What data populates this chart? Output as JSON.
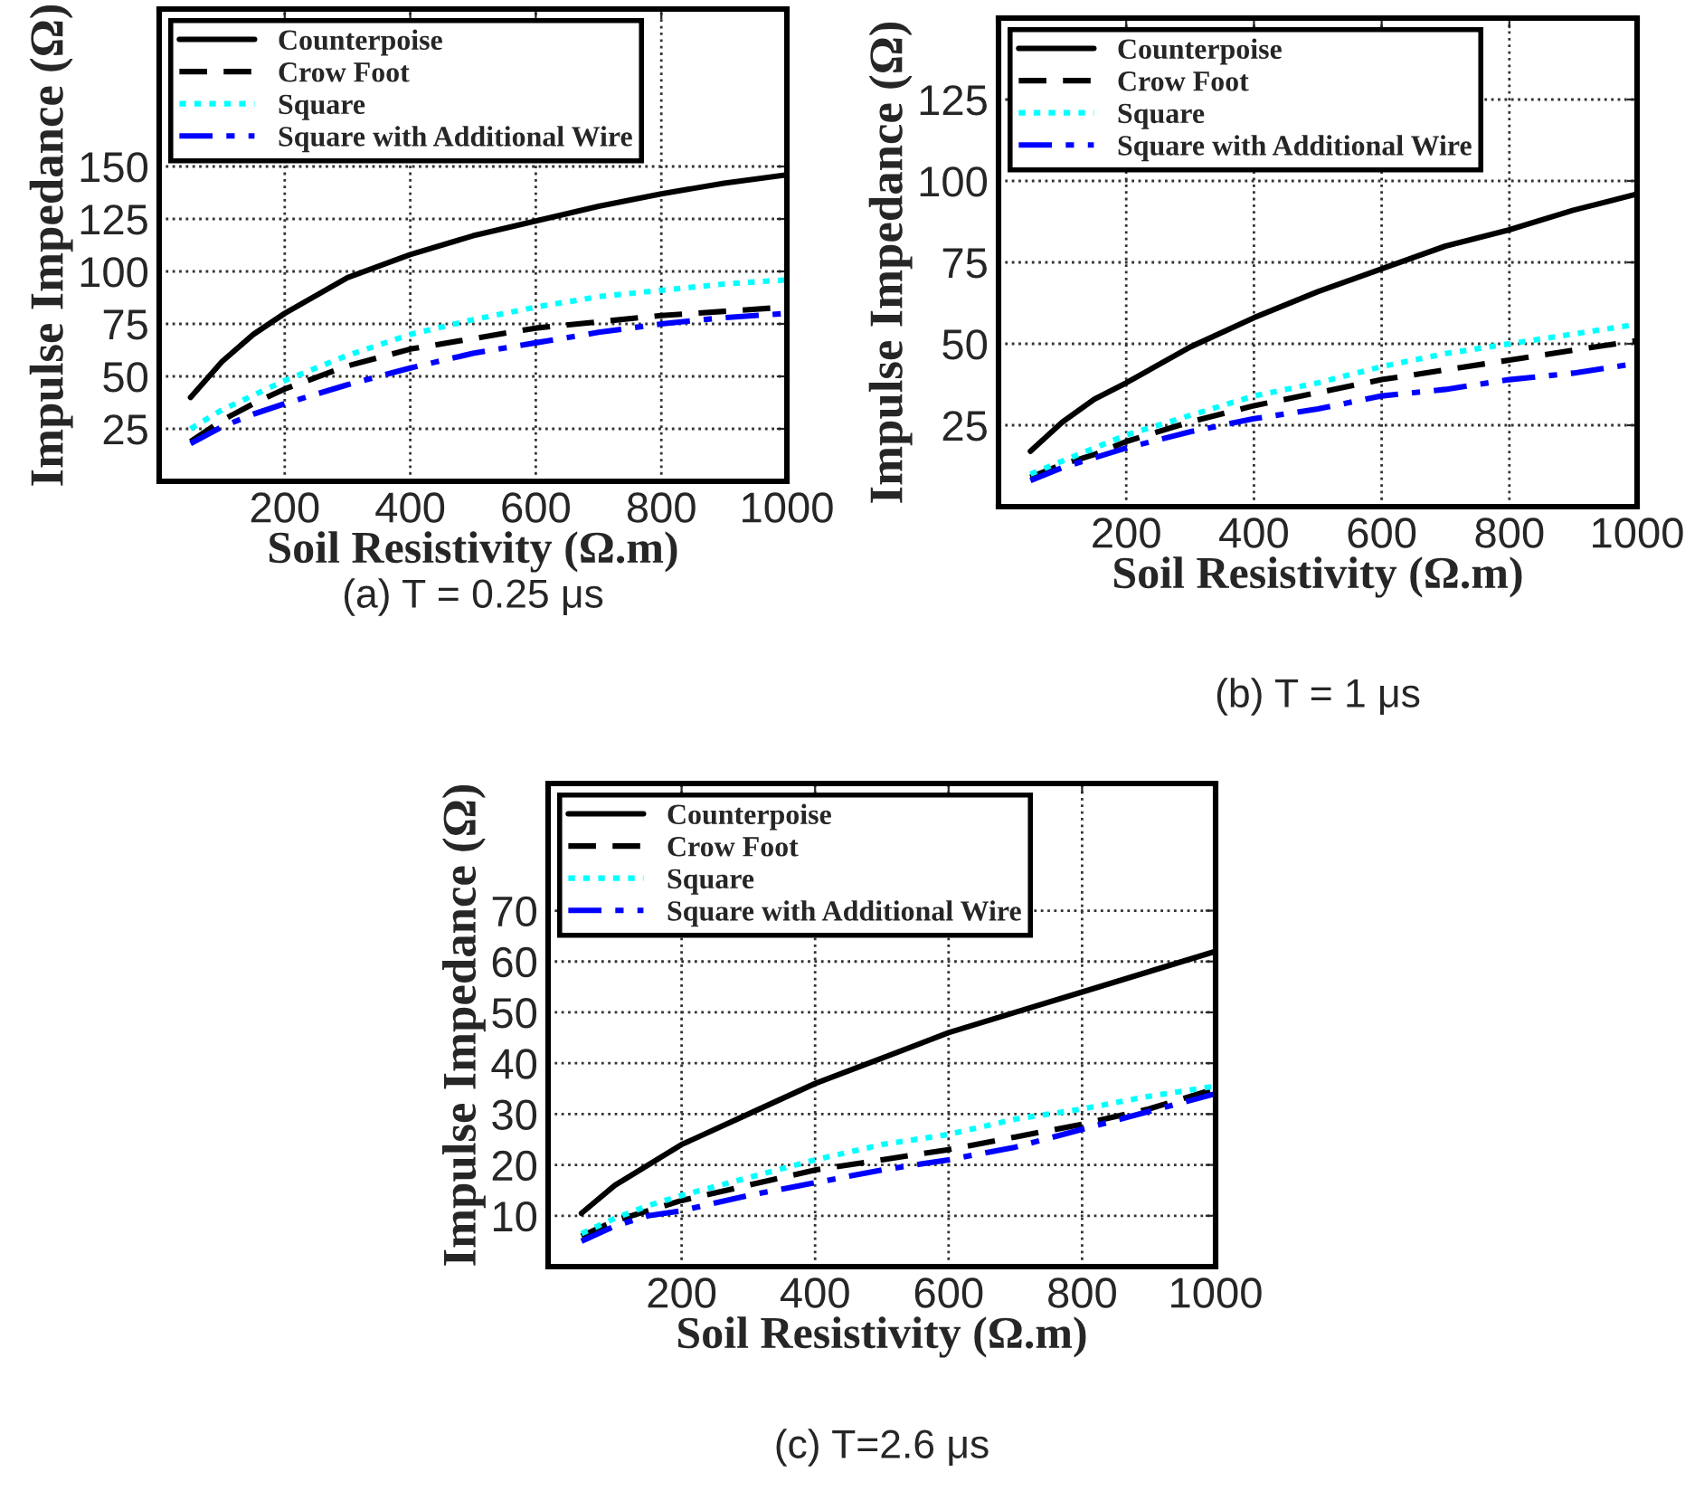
{
  "chart_data": [
    {
      "type": "line",
      "title": "(a) T = 0.25 μs",
      "xlabel": "Soil Resistivity (Ω.m)",
      "ylabel": "Impulse Impedance (Ω)",
      "x": [
        50,
        100,
        150,
        200,
        300,
        400,
        500,
        600,
        700,
        800,
        900,
        1000
      ],
      "xlim": [
        0,
        1000
      ],
      "ylim": [
        0,
        225
      ],
      "xticks": [
        200,
        400,
        600,
        800,
        1000
      ],
      "yticks": [
        25,
        50,
        75,
        100,
        125,
        150
      ],
      "grid": true,
      "legend": "top left",
      "series": [
        {
          "name": "Counterpoise",
          "color": "#000000",
          "line_style": "solid",
          "values": [
            40,
            57,
            70,
            80,
            97,
            108,
            117,
            124,
            131,
            137,
            142,
            146
          ]
        },
        {
          "name": "Crow Foot",
          "color": "#000000",
          "line_style": "dashed",
          "values": [
            19,
            29,
            37,
            44,
            55,
            63,
            68,
            73,
            76,
            79,
            81,
            83
          ]
        },
        {
          "name": "Square",
          "color": "#00ffff",
          "line_style": "dotted",
          "values": [
            25,
            34,
            41,
            48,
            60,
            70,
            77,
            83,
            88,
            91,
            94,
            96
          ]
        },
        {
          "name": "Square with Additional Wire",
          "color": "#0000ff",
          "line_style": "dashdot",
          "values": [
            18,
            26,
            32,
            37,
            46,
            54,
            61,
            66,
            71,
            75,
            78,
            80
          ]
        }
      ]
    },
    {
      "type": "line",
      "title": "(b) T = 1 μs",
      "xlabel": "Soil Resistivity (Ω.m)",
      "ylabel": "Impulse Impedance (Ω)",
      "x": [
        50,
        100,
        150,
        200,
        300,
        400,
        500,
        600,
        700,
        800,
        900,
        1000
      ],
      "xlim": [
        0,
        1000
      ],
      "ylim": [
        0,
        150
      ],
      "xticks": [
        200,
        400,
        600,
        800,
        1000
      ],
      "yticks": [
        25,
        50,
        75,
        100,
        125
      ],
      "grid": true,
      "legend": "top left",
      "series": [
        {
          "name": "Counterpoise",
          "color": "#000000",
          "line_style": "solid",
          "values": [
            17,
            26,
            33,
            38,
            49,
            58,
            66,
            73,
            80,
            85,
            91,
            96
          ]
        },
        {
          "name": "Crow Foot",
          "color": "#000000",
          "line_style": "dashed",
          "values": [
            9,
            13,
            16,
            20,
            26,
            31,
            35,
            39,
            42,
            45,
            48,
            51
          ]
        },
        {
          "name": "Square",
          "color": "#00ffff",
          "line_style": "dotted",
          "values": [
            10,
            14,
            18,
            22,
            28,
            34,
            38,
            43,
            47,
            50,
            53,
            56
          ]
        },
        {
          "name": "Square with Additional Wire",
          "color": "#0000ff",
          "line_style": "dashdot",
          "values": [
            8,
            12,
            15,
            18,
            23,
            27,
            30,
            34,
            36,
            39,
            41,
            44
          ]
        }
      ]
    },
    {
      "type": "line",
      "title": "(c) T=2.6 μs",
      "xlabel": "Soil Resistivity (Ω.m)",
      "ylabel": "Impulse Impedance (Ω)",
      "x": [
        50,
        100,
        150,
        200,
        300,
        400,
        500,
        600,
        700,
        800,
        900,
        1000
      ],
      "xlim": [
        0,
        1000
      ],
      "ylim": [
        0,
        95
      ],
      "xticks": [
        200,
        400,
        600,
        800,
        1000
      ],
      "yticks": [
        10,
        20,
        30,
        40,
        50,
        60,
        70
      ],
      "grid": true,
      "legend": "top left",
      "series": [
        {
          "name": "Counterpoise",
          "color": "#000000",
          "line_style": "solid",
          "values": [
            10.5,
            16,
            20,
            24,
            30,
            36,
            41,
            46,
            50,
            54,
            58,
            62
          ]
        },
        {
          "name": "Crow Foot",
          "color": "#000000",
          "line_style": "dashed",
          "values": [
            6,
            9,
            11,
            13,
            16,
            19,
            21,
            23,
            25.5,
            28,
            31,
            35
          ]
        },
        {
          "name": "Square",
          "color": "#00ffff",
          "line_style": "dotted",
          "values": [
            6.5,
            9.5,
            12,
            14,
            17.5,
            21,
            24,
            26,
            29,
            31,
            33.5,
            35.5
          ]
        },
        {
          "name": "Square with Additional Wire",
          "color": "#0000ff",
          "line_style": "dashdot",
          "values": [
            5,
            8,
            10,
            11,
            14,
            16.5,
            19,
            21,
            23.5,
            27,
            30.5,
            34
          ]
        }
      ]
    }
  ]
}
